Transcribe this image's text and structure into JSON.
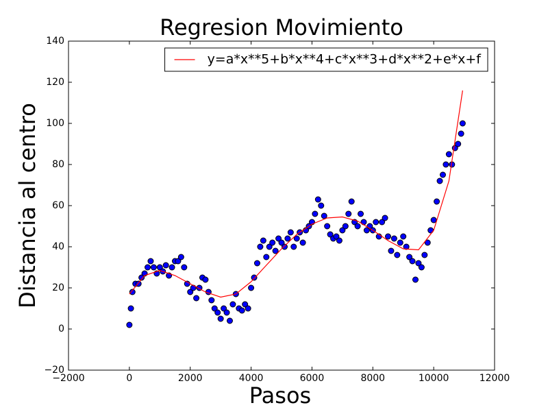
{
  "chart_data": {
    "type": "scatter",
    "title": "Regresion Movimiento",
    "xlabel": "Pasos",
    "ylabel": "Distancia al centro",
    "xlim": [
      -2000,
      12000
    ],
    "ylim": [
      -20,
      140
    ],
    "xticks": [
      {
        "value": -2000,
        "label": "−2000"
      },
      0,
      2000,
      4000,
      6000,
      8000,
      10000,
      12000
    ],
    "yticks": [
      {
        "value": -20,
        "label": "−20"
      },
      0,
      20,
      40,
      60,
      80,
      100,
      120,
      140
    ],
    "legend": "upper right",
    "series": [
      {
        "type": "scatter",
        "color": "#0000ff",
        "x": [
          0,
          50,
          100,
          200,
          300,
          400,
          500,
          600,
          700,
          800,
          900,
          1000,
          1100,
          1200,
          1300,
          1400,
          1500,
          1600,
          1700,
          1800,
          1900,
          2000,
          2100,
          2200,
          2300,
          2400,
          2500,
          2600,
          2700,
          2800,
          2900,
          3000,
          3100,
          3200,
          3300,
          3400,
          3500,
          3600,
          3700,
          3800,
          3900,
          4000,
          4100,
          4200,
          4300,
          4400,
          4500,
          4600,
          4700,
          4800,
          4900,
          5000,
          5100,
          5200,
          5300,
          5400,
          5500,
          5600,
          5700,
          5800,
          5900,
          6000,
          6100,
          6200,
          6300,
          6400,
          6500,
          6600,
          6700,
          6800,
          6900,
          7000,
          7100,
          7200,
          7300,
          7400,
          7500,
          7600,
          7700,
          7800,
          7900,
          8000,
          8100,
          8200,
          8300,
          8400,
          8500,
          8600,
          8700,
          8800,
          8900,
          9000,
          9100,
          9200,
          9300,
          9400,
          9500,
          9600,
          9700,
          9800,
          9900,
          10000,
          10100,
          10200,
          10300,
          10400,
          10500,
          10600,
          10700,
          10800,
          10900,
          10950
        ],
        "values": [
          2,
          10,
          18,
          22,
          22,
          25,
          27,
          30,
          33,
          30,
          27,
          30,
          28,
          31,
          26,
          30,
          33,
          33,
          35,
          30,
          22,
          18,
          20,
          15,
          20,
          25,
          24,
          18,
          14,
          10,
          8,
          5,
          10,
          8,
          4,
          12,
          17,
          10,
          9,
          12,
          10,
          20,
          25,
          32,
          40,
          43,
          35,
          40,
          42,
          38,
          44,
          42,
          40,
          44,
          47,
          40,
          44,
          47,
          42,
          48,
          50,
          52,
          56,
          63,
          60,
          55,
          50,
          46,
          44,
          45,
          43,
          48,
          50,
          56,
          62,
          52,
          50,
          56,
          52,
          48,
          50,
          48,
          52,
          45,
          52,
          54,
          45,
          38,
          44,
          36,
          42,
          45,
          40,
          35,
          33,
          24,
          32,
          30,
          36,
          42,
          48,
          53,
          62,
          72,
          75,
          80,
          85,
          80,
          88,
          90,
          95,
          100
        ]
      },
      {
        "type": "line",
        "name": "y=a*x**5+b*x**4+c*x**3+d*x**2+e*x+f",
        "color": "#ff0000",
        "x": [
          0,
          500,
          1000,
          1500,
          2000,
          2500,
          3000,
          3500,
          4000,
          4500,
          5000,
          5500,
          6000,
          6500,
          7000,
          7500,
          8000,
          8500,
          9000,
          9500,
          10000,
          10500,
          10950
        ],
        "values": [
          17,
          26,
          28.5,
          26,
          22,
          18,
          15.5,
          17,
          23,
          31,
          39,
          46,
          51,
          54,
          54.5,
          52.5,
          48,
          43,
          39,
          38.5,
          48,
          72,
          116
        ]
      }
    ]
  }
}
